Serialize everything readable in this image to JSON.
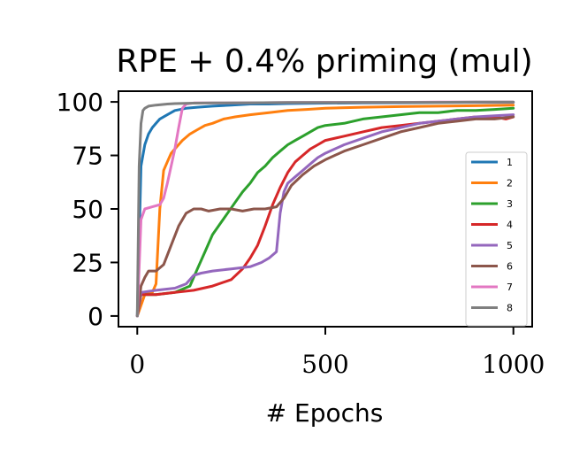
{
  "chart_data": {
    "type": "line",
    "title": "RPE + 0.4% priming (mul)",
    "xlabel": "# Epochs",
    "ylabel": "",
    "xlim": [
      -50,
      1050
    ],
    "ylim": [
      -5,
      105
    ],
    "xticks": [
      0,
      500,
      1000
    ],
    "xtick_labels": [
      "0",
      "500",
      "1000"
    ],
    "yticks": [
      0,
      25,
      50,
      75,
      100
    ],
    "ytick_labels": [
      "0",
      "25",
      "50",
      "75",
      "100"
    ],
    "grid": false,
    "legend_position": "center-right",
    "series": [
      {
        "name": "1",
        "color": "#1f77b4",
        "x": [
          0,
          10,
          20,
          30,
          40,
          50,
          60,
          80,
          100,
          130,
          160,
          200,
          250,
          300,
          350,
          400,
          500,
          600,
          700,
          800,
          900,
          1000
        ],
        "y": [
          0,
          70,
          80,
          85,
          88,
          90,
          92,
          94,
          96,
          97,
          97.5,
          98,
          98.5,
          99,
          99,
          99.2,
          99.4,
          99.5,
          99.6,
          99.7,
          99.8,
          99.8
        ]
      },
      {
        "name": "2",
        "color": "#ff7f0e",
        "x": [
          0,
          20,
          40,
          50,
          60,
          70,
          80,
          90,
          100,
          120,
          140,
          160,
          180,
          200,
          230,
          260,
          300,
          350,
          400,
          450,
          500,
          600,
          700,
          800,
          900,
          1000
        ],
        "y": [
          0,
          10,
          11,
          15,
          50,
          68,
          72,
          76,
          78,
          82,
          85,
          87,
          89,
          90,
          92,
          93,
          94,
          95,
          96,
          96.5,
          97,
          97.5,
          97.8,
          98,
          98.2,
          98.5
        ]
      },
      {
        "name": "3",
        "color": "#2ca02c",
        "x": [
          0,
          10,
          50,
          100,
          140,
          160,
          180,
          200,
          220,
          240,
          260,
          280,
          300,
          320,
          340,
          360,
          380,
          400,
          420,
          440,
          460,
          480,
          500,
          550,
          600,
          650,
          700,
          750,
          800,
          850,
          900,
          950,
          1000
        ],
        "y": [
          0,
          10,
          10,
          11,
          14,
          22,
          30,
          38,
          43,
          48,
          53,
          58,
          62,
          67,
          70,
          74,
          77,
          80,
          82,
          84,
          86,
          88,
          89,
          90,
          92,
          93,
          94,
          95,
          95,
          96,
          96,
          96.5,
          97
        ]
      },
      {
        "name": "4",
        "color": "#d62728",
        "x": [
          0,
          10,
          50,
          100,
          150,
          200,
          250,
          280,
          300,
          320,
          340,
          360,
          380,
          400,
          420,
          440,
          460,
          480,
          500,
          550,
          600,
          650,
          700,
          750,
          800,
          850,
          900,
          950,
          980,
          1000
        ],
        "y": [
          0,
          10,
          10,
          11,
          12,
          14,
          17,
          22,
          27,
          33,
          42,
          52,
          60,
          67,
          72,
          75,
          78,
          80,
          82,
          84,
          86,
          88,
          89,
          90,
          91,
          92,
          93,
          93,
          92,
          93
        ]
      },
      {
        "name": "5",
        "color": "#9467bd",
        "x": [
          0,
          10,
          50,
          100,
          130,
          150,
          170,
          200,
          250,
          300,
          330,
          350,
          370,
          380,
          390,
          400,
          420,
          440,
          460,
          480,
          500,
          550,
          600,
          650,
          700,
          750,
          800,
          850,
          900,
          950,
          1000
        ],
        "y": [
          0,
          11,
          12,
          13,
          15,
          19,
          20,
          21,
          22,
          23,
          25,
          27,
          30,
          48,
          58,
          62,
          65,
          68,
          71,
          74,
          76,
          80,
          83,
          86,
          88,
          90,
          91,
          92,
          93,
          93.5,
          94
        ]
      },
      {
        "name": "6",
        "color": "#8c564b",
        "x": [
          0,
          10,
          20,
          30,
          50,
          70,
          90,
          110,
          130,
          150,
          170,
          190,
          220,
          250,
          280,
          310,
          340,
          370,
          390,
          410,
          440,
          470,
          500,
          550,
          600,
          650,
          700,
          750,
          800,
          850,
          900,
          950,
          1000
        ],
        "y": [
          0,
          14,
          18,
          21,
          21,
          24,
          33,
          42,
          48,
          50,
          50,
          49,
          50,
          50,
          49,
          50,
          50,
          51,
          55,
          61,
          66,
          70,
          73,
          77,
          80,
          83,
          86,
          88,
          90,
          91,
          92,
          92,
          93
        ]
      },
      {
        "name": "7",
        "color": "#e377c2",
        "x": [
          0,
          10,
          20,
          40,
          60,
          70,
          80,
          90,
          100,
          110,
          120,
          130,
          150,
          200,
          300,
          400,
          500,
          600,
          700,
          800,
          900,
          1000
        ],
        "y": [
          0,
          45,
          50,
          51,
          52,
          55,
          62,
          70,
          78,
          88,
          97,
          99,
          99.5,
          99.5,
          99.6,
          99.7,
          99.8,
          99.8,
          99.8,
          99.9,
          99.9,
          99.9
        ]
      },
      {
        "name": "8",
        "color": "#7f7f7f",
        "x": [
          0,
          5,
          10,
          15,
          20,
          30,
          50,
          80,
          100,
          150,
          200,
          300,
          400,
          500,
          600,
          700,
          800,
          900,
          1000
        ],
        "y": [
          0,
          70,
          90,
          96,
          97,
          98,
          98.5,
          99,
          99.2,
          99.4,
          99.5,
          99.6,
          99.7,
          99.7,
          99.8,
          99.8,
          99.8,
          99.9,
          99.9
        ]
      }
    ]
  }
}
